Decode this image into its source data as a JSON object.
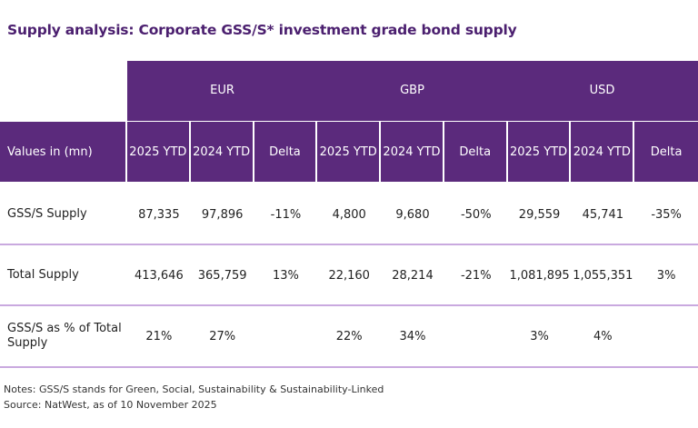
{
  "title": "Supply analysis: Corporate GSS/S* investment grade bond supply",
  "currencies": [
    "EUR",
    "GBP",
    "USD"
  ],
  "header": {
    "first": "Values in (mn)",
    "cols": [
      "2025 YTD",
      "2024 YTD",
      "Delta",
      "2025 YTD",
      "2024 YTD",
      "Delta",
      "2025 YTD",
      "2024 YTD",
      "Delta"
    ]
  },
  "rows": [
    {
      "label": "GSS/S Supply",
      "values": [
        "87,335",
        "97,896",
        "-11%",
        "4,800",
        "9,680",
        "-50%",
        "29,559",
        "45,741",
        "-35%"
      ]
    },
    {
      "label": "Total Supply",
      "values": [
        "413,646",
        "365,759",
        "13%",
        "22,160",
        "28,214",
        "-21%",
        "1,081,895",
        "1,055,351",
        "3%"
      ]
    },
    {
      "label": "GSS/S as % of Total Supply",
      "values": [
        "21%",
        "27%",
        "",
        "22%",
        "34%",
        "",
        "3%",
        "4%",
        ""
      ]
    }
  ],
  "notes": [
    "Notes: GSS/S stands for Green, Social, Sustainability & Sustainability-Linked",
    "Source: NatWest, as of 10 November 2025"
  ],
  "colors": {
    "header": "#5b2a7c",
    "title": "#4b1f6f",
    "rule": "#c9a9df"
  }
}
